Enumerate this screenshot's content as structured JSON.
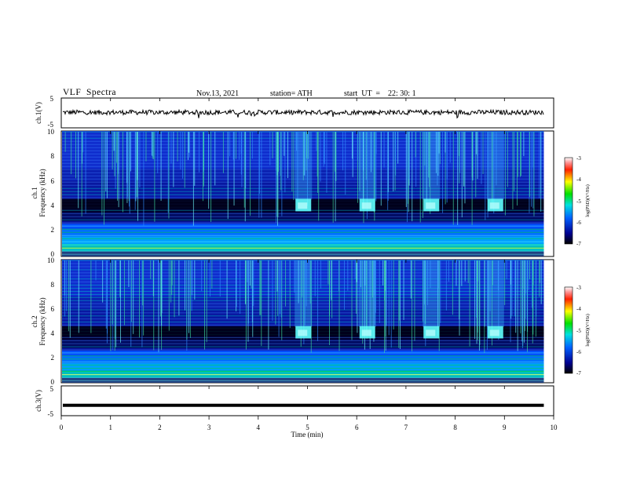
{
  "header": {
    "title": "VLF  Spectra",
    "date": "Nov.13, 2021",
    "station": "station= ATH",
    "start_ut": "start  UT  =    22: 30: 1"
  },
  "chart_data": [
    {
      "type": "line",
      "name": "ch1-voltage",
      "ylabel": "ch.1(V)",
      "ylim": [
        -5,
        5
      ],
      "yticks": [
        "5",
        "-5"
      ],
      "x_range_min": [
        0,
        9.8
      ],
      "approx_level_V": 0.2
    },
    {
      "type": "heatmap",
      "name": "ch1-spectrogram",
      "ylabel": "ch.1\nFrequency (kHz)",
      "ylim": [
        0,
        10
      ],
      "yticks": [
        "10",
        "8",
        "6",
        "4",
        "2",
        "0"
      ],
      "bursts_min": [
        4.9,
        6.2,
        7.5,
        8.8
      ],
      "burst_freq_kHz": 4,
      "colorbar": {
        "label": "log(PSD)(V²/Hz)",
        "ticks": [
          "-3",
          "-4",
          "-5",
          "-6",
          "-7"
        ],
        "range": [
          -7,
          -3
        ]
      }
    },
    {
      "type": "heatmap",
      "name": "ch2-spectrogram",
      "ylabel": "ch.2\nFrequency (kHz)",
      "ylim": [
        0,
        10
      ],
      "yticks": [
        "10",
        "8",
        "6",
        "4",
        "2",
        "0"
      ],
      "bursts_min": [
        4.9,
        6.2,
        7.5,
        8.8
      ],
      "burst_freq_kHz": 4,
      "colorbar": {
        "label": "log(PSD)(V²/Hz)",
        "ticks": [
          "-3",
          "-4",
          "-5",
          "-6",
          "-7"
        ],
        "range": [
          -7,
          -3
        ]
      }
    },
    {
      "type": "line",
      "name": "ch3-voltage",
      "ylabel": "ch.3(V)",
      "ylim": [
        -5,
        5
      ],
      "yticks": [
        "5",
        "-5"
      ],
      "x_range_min": [
        0,
        9.8
      ],
      "approx_level_V": -1.5
    }
  ],
  "xaxis": {
    "label": "Time  (min)",
    "ticks": [
      "0",
      "1",
      "2",
      "3",
      "4",
      "5",
      "6",
      "7",
      "8",
      "9",
      "10"
    ],
    "range": [
      0,
      10
    ]
  }
}
